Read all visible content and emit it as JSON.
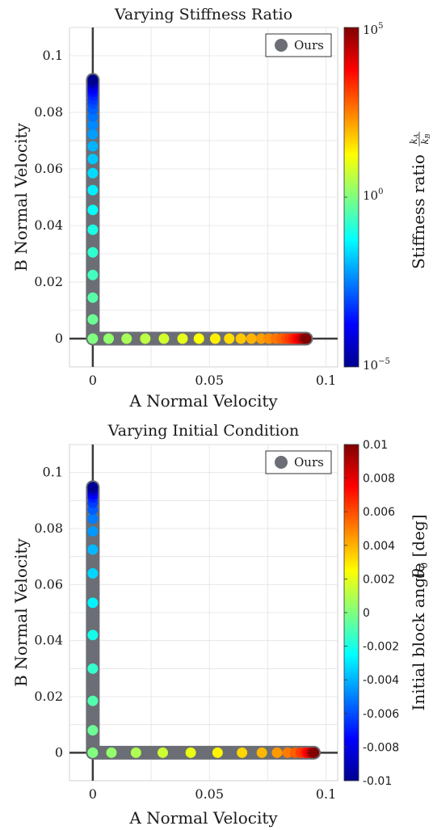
{
  "chart_data": [
    {
      "type": "scatter",
      "title": "Varying Stiffness Ratio",
      "xlabel": "A Normal Velocity",
      "ylabel": "B Normal Velocity",
      "xlim": [
        -0.01,
        0.105
      ],
      "ylim": [
        -0.01,
        0.11
      ],
      "xticks": [
        0,
        0.05,
        0.1
      ],
      "xtick_labels": [
        "0",
        "0.05",
        "0.1"
      ],
      "yticks": [
        0,
        0.02,
        0.04,
        0.06,
        0.08,
        0.1
      ],
      "ytick_labels": [
        "0",
        "0.02",
        "0.04",
        "0.06",
        "0.08",
        "0.1"
      ],
      "grid": true,
      "legend": {
        "position": "top-right",
        "entries": [
          "Ours"
        ]
      },
      "colorbar": {
        "label": "Stiffness ratio",
        "label_math": "kA/kB",
        "scale": "log",
        "range": [
          -5,
          5
        ],
        "tick_labels": [
          "10^5",
          "10^0",
          "10^-5"
        ]
      },
      "series": [
        {
          "name": "Ours",
          "points_b_axis": {
            "x": 0,
            "y": [
              0.0,
              0.0068,
              0.0145,
              0.0225,
              0.0305,
              0.0385,
              0.0455,
              0.0525,
              0.0585,
              0.0635,
              0.068,
              0.0722,
              0.0755,
              0.0785,
              0.081,
              0.083,
              0.0845,
              0.086,
              0.0872,
              0.0882,
              0.089,
              0.0897,
              0.0903,
              0.0908,
              0.0912,
              0.0915
            ],
            "c": [
              0,
              -0.2,
              -0.4,
              -0.6,
              -0.8,
              -1.0,
              -1.2,
              -1.4,
              -1.6,
              -1.8,
              -2.0,
              -2.2,
              -2.4,
              -2.6,
              -2.8,
              -3.0,
              -3.2,
              -3.4,
              -3.6,
              -3.8,
              -4.0,
              -4.2,
              -4.4,
              -4.6,
              -4.8,
              -5.0
            ]
          },
          "points_a_axis": {
            "y": 0,
            "x": [
              0.0068,
              0.0145,
              0.0225,
              0.0305,
              0.0385,
              0.0455,
              0.0525,
              0.0585,
              0.0635,
              0.068,
              0.0722,
              0.0755,
              0.0785,
              0.081,
              0.083,
              0.0845,
              0.086,
              0.0872,
              0.0882,
              0.089,
              0.0897,
              0.0903,
              0.0908,
              0.0912,
              0.0915
            ],
            "c": [
              0.2,
              0.4,
              0.6,
              0.8,
              1.0,
              1.2,
              1.4,
              1.6,
              1.8,
              2.0,
              2.2,
              2.4,
              2.6,
              2.8,
              3.0,
              3.2,
              3.4,
              3.6,
              3.8,
              4.0,
              4.2,
              4.4,
              4.6,
              4.8,
              5.0
            ]
          }
        }
      ]
    },
    {
      "type": "scatter",
      "title": "Varying Initial Condition",
      "xlabel": "A Normal Velocity",
      "ylabel": "B Normal Velocity",
      "xlim": [
        -0.01,
        0.105
      ],
      "ylim": [
        -0.01,
        0.11
      ],
      "xticks": [
        0,
        0.05,
        0.1
      ],
      "xtick_labels": [
        "0",
        "0.05",
        "0.1"
      ],
      "yticks": [
        0,
        0.02,
        0.04,
        0.06,
        0.08,
        0.1
      ],
      "ytick_labels": [
        "0",
        "0.02",
        "0.04",
        "0.06",
        "0.08",
        "0.1"
      ],
      "grid": true,
      "legend": {
        "position": "top-right",
        "entries": [
          "Ours"
        ]
      },
      "colorbar": {
        "label": "Initial block angle",
        "label_math": "θ0 [deg]",
        "scale": "linear",
        "range": [
          -0.01,
          0.01
        ],
        "ticks": [
          0.01,
          0.008,
          0.006,
          0.004,
          0.002,
          0,
          -0.002,
          -0.004,
          -0.006,
          -0.008,
          -0.01
        ],
        "tick_labels": [
          "0.01",
          "0.008",
          "0.006",
          "0.004",
          "0.002",
          "0",
          "-0.002",
          "-0.004",
          "-0.006",
          "-0.008",
          "-0.01"
        ]
      },
      "series": [
        {
          "name": "Ours",
          "points_b_axis": {
            "x": 0,
            "y": [
              0.0,
              0.008,
              0.0185,
              0.03,
              0.042,
              0.0535,
              0.064,
              0.0725,
              0.079,
              0.0835,
              0.0868,
              0.0892,
              0.091,
              0.0922,
              0.0932,
              0.0939,
              0.0944,
              0.0948
            ],
            "c": [
              0,
              -0.0004,
              -0.0009,
              -0.0015,
              -0.0021,
              -0.0027,
              -0.0033,
              -0.0039,
              -0.0045,
              -0.0051,
              -0.0057,
              -0.0063,
              -0.0069,
              -0.0075,
              -0.0081,
              -0.0087,
              -0.0093,
              -0.0099
            ]
          },
          "points_a_axis": {
            "y": 0,
            "x": [
              0.008,
              0.0185,
              0.03,
              0.042,
              0.0535,
              0.064,
              0.0725,
              0.079,
              0.0835,
              0.0868,
              0.0892,
              0.091,
              0.0922,
              0.0932,
              0.0939,
              0.0944,
              0.0948
            ],
            "c": [
              0.0004,
              0.0009,
              0.0015,
              0.0021,
              0.0027,
              0.0033,
              0.0039,
              0.0045,
              0.0051,
              0.0057,
              0.0063,
              0.0069,
              0.0075,
              0.0081,
              0.0087,
              0.0093,
              0.0099
            ]
          }
        }
      ]
    }
  ],
  "colors": {
    "marker_track": "#6b6e74",
    "axis_line": "#3a3a3a",
    "grid": "#e3e3e3"
  }
}
